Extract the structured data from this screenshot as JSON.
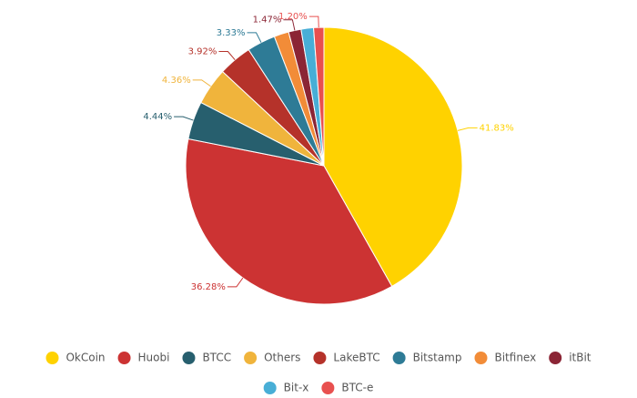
{
  "chart_data": {
    "type": "pie",
    "categories": [
      "OkCoin",
      "Huobi",
      "BTCC",
      "Others",
      "LakeBTC",
      "Bitstamp",
      "Bitfinex",
      "itBit",
      "Bit-x",
      "BTC-e"
    ],
    "values": [
      41.83,
      36.28,
      4.44,
      4.36,
      3.92,
      3.33,
      1.72,
      1.47,
      1.45,
      1.2
    ],
    "value_labels": [
      "41.83%",
      "36.28%",
      "4.44%",
      "4.36%",
      "3.92%",
      "3.33%",
      null,
      "1.47%",
      null,
      "1.20%"
    ],
    "colors": [
      "#ffd200",
      "#cc3333",
      "#275f6e",
      "#f0b43c",
      "#b5322a",
      "#2e7b96",
      "#f28c38",
      "#8b2535",
      "#48aed6",
      "#e8504f"
    ],
    "legend": "bottom"
  }
}
